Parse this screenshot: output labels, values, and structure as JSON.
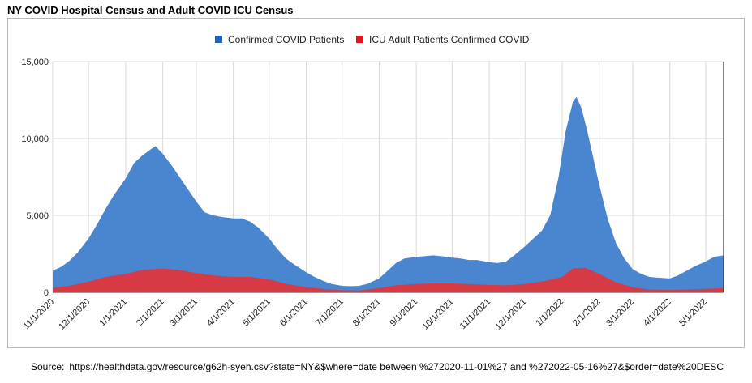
{
  "title": "NY COVID Hospital Census and Adult COVID ICU Census",
  "source_label": "Source:",
  "source_url": "https://healthdata.gov/resource/g62h-syeh.csv?state=NY&$where=date between %272020-11-01%27 and %272022-05-16%27&$order=date%20DESC",
  "chart_data": {
    "type": "area",
    "x_start": "2020-11-01",
    "x_end": "2022-05-16",
    "x_ticks": [
      "11/1/2020",
      "12/1/2020",
      "1/1/2021",
      "2/1/2021",
      "3/1/2021",
      "4/1/2021",
      "5/1/2021",
      "6/1/2021",
      "7/1/2021",
      "8/1/2021",
      "9/1/2021",
      "10/1/2021",
      "11/1/2021",
      "12/1/2021",
      "1/1/2022",
      "2/1/2022",
      "3/1/2022",
      "4/1/2022",
      "5/1/2022"
    ],
    "ylim": [
      0,
      15000
    ],
    "y_ticks": [
      "0",
      "5,000",
      "10,000",
      "15,000"
    ],
    "y_tick_values": [
      0,
      5000,
      10000,
      15000
    ],
    "grid": true,
    "legend_position": "top-center",
    "series": [
      {
        "name": "Confirmed COVID Patients",
        "color": "#4a86cf",
        "legend_color": "#1a64c0",
        "points": [
          [
            "2020-11-01",
            1400
          ],
          [
            "2020-11-08",
            1650
          ],
          [
            "2020-11-15",
            2050
          ],
          [
            "2020-11-22",
            2600
          ],
          [
            "2020-12-01",
            3500
          ],
          [
            "2020-12-08",
            4400
          ],
          [
            "2020-12-15",
            5400
          ],
          [
            "2020-12-22",
            6300
          ],
          [
            "2021-01-01",
            7400
          ],
          [
            "2021-01-08",
            8400
          ],
          [
            "2021-01-15",
            8900
          ],
          [
            "2021-01-22",
            9300
          ],
          [
            "2021-01-26",
            9500
          ],
          [
            "2021-02-01",
            9000
          ],
          [
            "2021-02-08",
            8300
          ],
          [
            "2021-02-15",
            7500
          ],
          [
            "2021-02-22",
            6700
          ],
          [
            "2021-03-01",
            5900
          ],
          [
            "2021-03-08",
            5200
          ],
          [
            "2021-03-15",
            5000
          ],
          [
            "2021-03-22",
            4900
          ],
          [
            "2021-04-01",
            4800
          ],
          [
            "2021-04-08",
            4800
          ],
          [
            "2021-04-15",
            4600
          ],
          [
            "2021-04-22",
            4200
          ],
          [
            "2021-05-01",
            3500
          ],
          [
            "2021-05-08",
            2800
          ],
          [
            "2021-05-15",
            2200
          ],
          [
            "2021-05-22",
            1800
          ],
          [
            "2021-06-01",
            1300
          ],
          [
            "2021-06-08",
            1000
          ],
          [
            "2021-06-15",
            750
          ],
          [
            "2021-06-22",
            550
          ],
          [
            "2021-07-01",
            420
          ],
          [
            "2021-07-08",
            400
          ],
          [
            "2021-07-15",
            420
          ],
          [
            "2021-07-22",
            550
          ],
          [
            "2021-08-01",
            900
          ],
          [
            "2021-08-08",
            1400
          ],
          [
            "2021-08-15",
            1900
          ],
          [
            "2021-08-22",
            2200
          ],
          [
            "2021-09-01",
            2300
          ],
          [
            "2021-09-08",
            2350
          ],
          [
            "2021-09-15",
            2400
          ],
          [
            "2021-09-22",
            2350
          ],
          [
            "2021-10-01",
            2250
          ],
          [
            "2021-10-08",
            2200
          ],
          [
            "2021-10-15",
            2100
          ],
          [
            "2021-10-22",
            2100
          ],
          [
            "2021-11-01",
            1950
          ],
          [
            "2021-11-08",
            1900
          ],
          [
            "2021-11-15",
            2000
          ],
          [
            "2021-11-22",
            2400
          ],
          [
            "2021-12-01",
            3000
          ],
          [
            "2021-12-08",
            3500
          ],
          [
            "2021-12-15",
            4000
          ],
          [
            "2021-12-22",
            5000
          ],
          [
            "2021-12-29",
            7500
          ],
          [
            "2022-01-04",
            10500
          ],
          [
            "2022-01-10",
            12400
          ],
          [
            "2022-01-13",
            12700
          ],
          [
            "2022-01-17",
            12000
          ],
          [
            "2022-01-22",
            10500
          ],
          [
            "2022-02-01",
            7000
          ],
          [
            "2022-02-08",
            4800
          ],
          [
            "2022-02-15",
            3200
          ],
          [
            "2022-02-22",
            2200
          ],
          [
            "2022-03-01",
            1500
          ],
          [
            "2022-03-08",
            1200
          ],
          [
            "2022-03-15",
            1000
          ],
          [
            "2022-03-22",
            950
          ],
          [
            "2022-04-01",
            900
          ],
          [
            "2022-04-08",
            1100
          ],
          [
            "2022-04-15",
            1400
          ],
          [
            "2022-04-22",
            1700
          ],
          [
            "2022-05-01",
            2000
          ],
          [
            "2022-05-08",
            2300
          ],
          [
            "2022-05-16",
            2400
          ]
        ]
      },
      {
        "name": "ICU Adult Patients Confirmed COVID",
        "color": "#d63a45",
        "legend_color": "#e3141e",
        "points": [
          [
            "2020-11-01",
            300
          ],
          [
            "2020-11-15",
            420
          ],
          [
            "2020-12-01",
            700
          ],
          [
            "2020-12-15",
            1000
          ],
          [
            "2021-01-01",
            1200
          ],
          [
            "2021-01-15",
            1450
          ],
          [
            "2021-02-01",
            1550
          ],
          [
            "2021-02-15",
            1450
          ],
          [
            "2021-03-01",
            1250
          ],
          [
            "2021-03-15",
            1100
          ],
          [
            "2021-04-01",
            1000
          ],
          [
            "2021-04-15",
            1000
          ],
          [
            "2021-05-01",
            850
          ],
          [
            "2021-05-15",
            550
          ],
          [
            "2021-06-01",
            330
          ],
          [
            "2021-06-15",
            220
          ],
          [
            "2021-07-01",
            130
          ],
          [
            "2021-07-15",
            120
          ],
          [
            "2021-08-01",
            280
          ],
          [
            "2021-08-15",
            450
          ],
          [
            "2021-09-01",
            550
          ],
          [
            "2021-09-15",
            580
          ],
          [
            "2021-10-01",
            580
          ],
          [
            "2021-10-15",
            540
          ],
          [
            "2021-11-01",
            480
          ],
          [
            "2021-11-15",
            450
          ],
          [
            "2021-12-01",
            550
          ],
          [
            "2021-12-15",
            700
          ],
          [
            "2022-01-01",
            1000
          ],
          [
            "2022-01-10",
            1550
          ],
          [
            "2022-01-20",
            1600
          ],
          [
            "2022-02-01",
            1200
          ],
          [
            "2022-02-15",
            650
          ],
          [
            "2022-03-01",
            320
          ],
          [
            "2022-03-15",
            180
          ],
          [
            "2022-04-01",
            150
          ],
          [
            "2022-04-15",
            180
          ],
          [
            "2022-05-01",
            220
          ],
          [
            "2022-05-16",
            270
          ]
        ]
      }
    ]
  }
}
